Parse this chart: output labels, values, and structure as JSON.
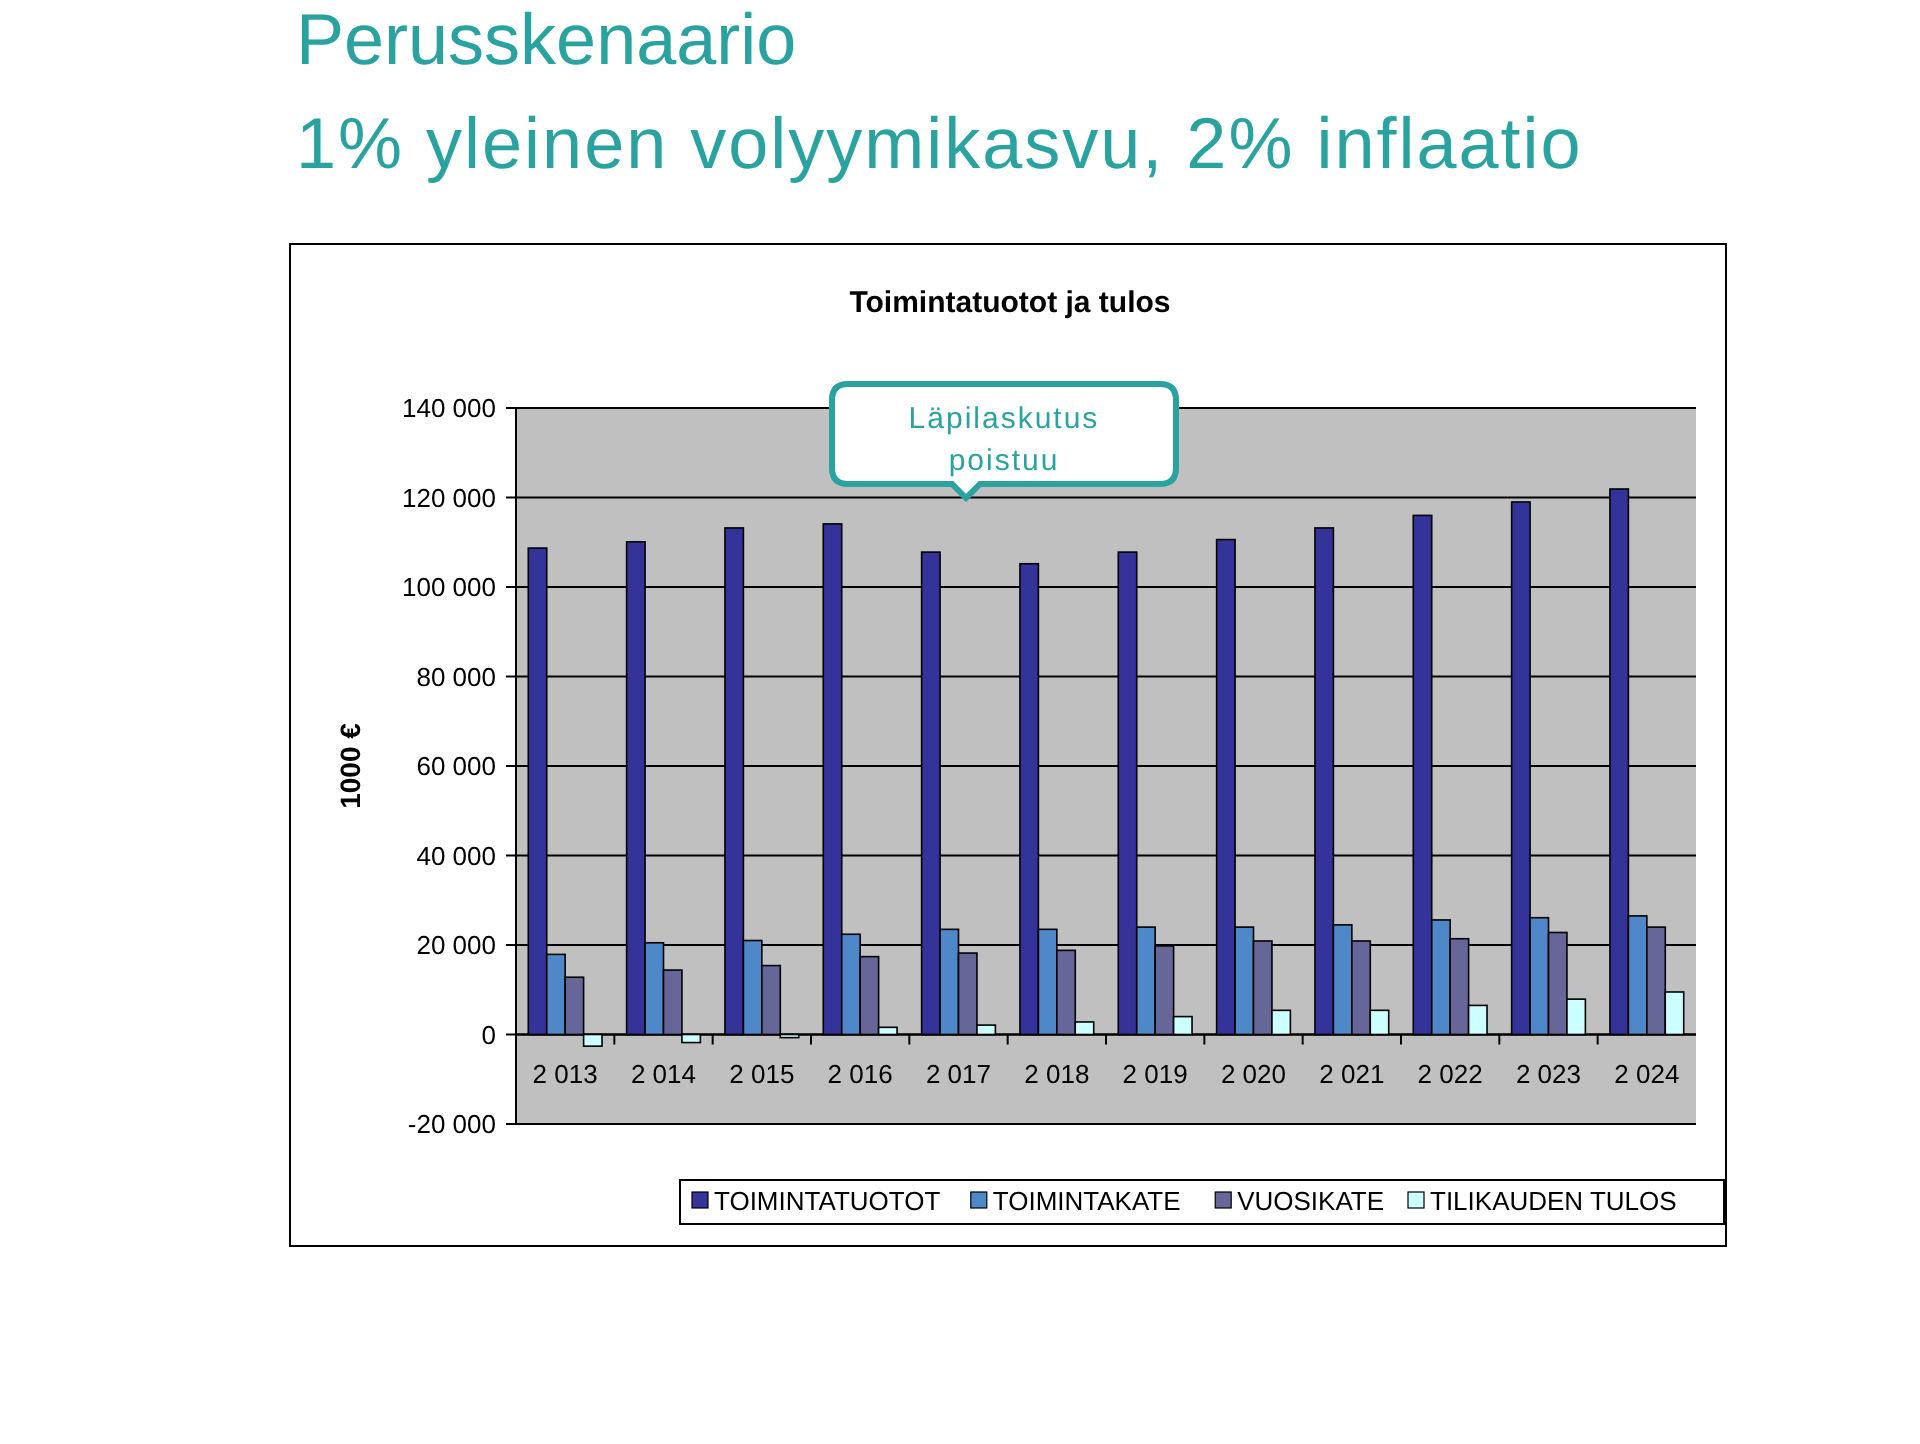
{
  "chart_data": {
    "type": "bar",
    "title": "Perusskenaario",
    "subtitle": "1% yleinen volyymikasvu, 2% inflaatio",
    "ylabel": "1000 €",
    "annotations": [
      "Toimintatuotot ja tulos",
      "Läpilaskutus poistuu"
    ],
    "categories": [
      "2 013",
      "2 014",
      "2 015",
      "2 016",
      "2 017",
      "2 018",
      "2 019",
      "2 020",
      "2 021",
      "2 022",
      "2 023",
      "2 024"
    ],
    "series": [
      {
        "name": "TOIMINTATUOTOT",
        "color": "#333399",
        "values": [
          108700,
          110100,
          113200,
          114100,
          107800,
          105200,
          107800,
          110600,
          113200,
          116000,
          119000,
          121900
        ]
      },
      {
        "name": "TOIMINTAKATE",
        "color": "#4f88c9",
        "values": [
          17900,
          20500,
          21000,
          22400,
          23500,
          23500,
          24000,
          24000,
          24500,
          25600,
          26100,
          26500
        ]
      },
      {
        "name": "VUOSIKATE",
        "color": "#666699",
        "values": [
          12800,
          14400,
          15400,
          17400,
          18200,
          18800,
          19800,
          20900,
          20900,
          21400,
          22800,
          24000
        ]
      },
      {
        "name": "TILIKAUDEN TULOS",
        "color": "#ccffff",
        "values": [
          -2600,
          -1800,
          -700,
          1600,
          2100,
          2800,
          4000,
          5400,
          5400,
          6500,
          7900,
          9500
        ]
      }
    ],
    "ylim": [
      -20000,
      140000
    ],
    "yticks": [
      {
        "value": -20000,
        "label": "-20 000"
      },
      0,
      {
        "value": 20000,
        "label": "20 000"
      },
      {
        "value": 40000,
        "label": "40 000"
      },
      {
        "value": 60000,
        "label": "60 000"
      },
      {
        "value": 80000,
        "label": "80 000"
      },
      {
        "value": 100000,
        "label": "100 000"
      },
      {
        "value": 120000,
        "label": "120 000"
      },
      {
        "value": 140000,
        "label": "140 000"
      }
    ],
    "grid": "y",
    "legend": "bottom"
  }
}
